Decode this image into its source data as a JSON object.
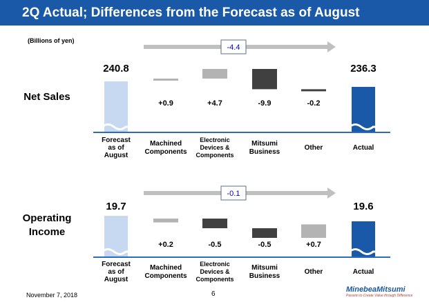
{
  "title": "2Q Actual; Differences from the Forecast as of August",
  "unit_label": "(Billions of yen)",
  "footer": {
    "date": "November 7, 2018",
    "page": "6"
  },
  "logo": {
    "name": "MinebeaMitsumi",
    "tagline": "Passion to Create Value through Difference"
  },
  "colors": {
    "title_bg": "#1a58a8",
    "forecast": "#c6d9f1",
    "actual": "#1a58a8",
    "positive": "#b3b3b3",
    "negative": "#404040",
    "arrow": "#c0c0c0",
    "delta_text": "#0000cc"
  },
  "chart_data": [
    {
      "type": "waterfall",
      "title": "Net Sales",
      "total_change": "-4.4",
      "categories": [
        [
          "Forecast",
          "as of",
          "August"
        ],
        [
          "Machined",
          "Components"
        ],
        [
          "Electronic",
          "Devices &",
          "Components"
        ],
        [
          "Mitsumi",
          "Business"
        ],
        [
          "Other"
        ],
        [
          "Actual"
        ]
      ],
      "start": {
        "value": 240.8,
        "label": "240.8"
      },
      "deltas": [
        {
          "value": 0.9,
          "label": "+0.9"
        },
        {
          "value": 4.7,
          "label": "+4.7"
        },
        {
          "value": -9.9,
          "label": "-9.9"
        },
        {
          "value": -0.2,
          "label": "-0.2"
        }
      ],
      "end": {
        "value": 236.3,
        "label": "236.3"
      }
    },
    {
      "type": "waterfall",
      "title": "Operating\nIncome",
      "total_change": "-0.1",
      "categories": [
        [
          "Forecast",
          "as of",
          "August"
        ],
        [
          "Machined",
          "Components"
        ],
        [
          "Electronic",
          "Devices &",
          "Components"
        ],
        [
          "Mitsumi",
          "Business"
        ],
        [
          "Other"
        ],
        [
          "Actual"
        ]
      ],
      "start": {
        "value": 19.7,
        "label": "19.7"
      },
      "deltas": [
        {
          "value": 0.2,
          "label": "+0.2"
        },
        {
          "value": -0.5,
          "label": "-0.5"
        },
        {
          "value": -0.5,
          "label": "-0.5"
        },
        {
          "value": 0.7,
          "label": "+0.7"
        }
      ],
      "end": {
        "value": 19.6,
        "label": "19.6"
      }
    }
  ]
}
